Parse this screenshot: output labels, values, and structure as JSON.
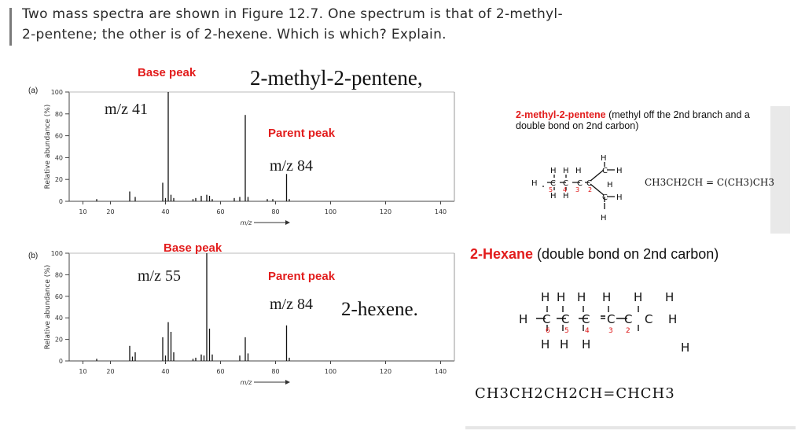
{
  "question": {
    "line1": "Two mass spectra are shown in Figure 12.7. One spectrum is that of 2-methyl-",
    "line2": "2-pentene; the other is of 2-hexene. Which is which? Explain."
  },
  "panel_a": {
    "label": "(a)",
    "compound_title": "2-methyl-2-pentene,",
    "base_peak_label": "Base peak",
    "base_mz": "m/z 41",
    "parent_peak_label": "Parent peak",
    "parent_mz": "m/z 84"
  },
  "panel_b": {
    "label": "(b)",
    "compound_title": "2-hexene.",
    "base_peak_label": "Base peak",
    "base_mz": "m/z 55",
    "parent_peak_label": "Parent peak",
    "parent_mz": "m/z 84"
  },
  "notes": {
    "a_title": "2-methyl-2-pentene",
    "a_desc": " (methyl off the 2nd branch and a double bond on 2nd carbon)",
    "b_title": "2-Hexane",
    "b_desc": " (double bond on 2nd carbon)",
    "a_formula": "CH3CH2CH = C(CH3)CH3",
    "b_formula": "CH3CH2CH2CH=CHCH3"
  },
  "chart_data": [
    {
      "type": "bar",
      "panel": "(a)",
      "xlabel": "m/z",
      "ylabel": "Relative abundance (%)",
      "xlim": [
        5,
        145
      ],
      "ylim": [
        0,
        100
      ],
      "xticks": [
        10,
        20,
        40,
        60,
        80,
        100,
        120,
        140
      ],
      "yticks": [
        0,
        20,
        40,
        60,
        80,
        100
      ],
      "x": [
        15,
        27,
        29,
        39,
        40,
        41,
        42,
        43,
        50,
        51,
        53,
        55,
        56,
        57,
        65,
        67,
        69,
        70,
        77,
        79,
        84,
        85
      ],
      "values": [
        2,
        9,
        4,
        17,
        3,
        100,
        6,
        3,
        2,
        3,
        5,
        6,
        5,
        2,
        3,
        4,
        79,
        4,
        2,
        2,
        25,
        2
      ]
    },
    {
      "type": "bar",
      "panel": "(b)",
      "xlabel": "m/z",
      "ylabel": "Relative abundance (%)",
      "xlim": [
        5,
        145
      ],
      "ylim": [
        0,
        100
      ],
      "xticks": [
        10,
        20,
        40,
        60,
        80,
        100,
        120,
        140
      ],
      "yticks": [
        0,
        20,
        40,
        60,
        80,
        100
      ],
      "x": [
        15,
        27,
        28,
        29,
        39,
        40,
        41,
        42,
        43,
        50,
        51,
        53,
        54,
        55,
        56,
        57,
        67,
        69,
        70,
        84,
        85
      ],
      "values": [
        2,
        14,
        4,
        8,
        22,
        5,
        36,
        27,
        8,
        2,
        3,
        6,
        5,
        100,
        30,
        6,
        5,
        22,
        7,
        33,
        3
      ]
    }
  ]
}
